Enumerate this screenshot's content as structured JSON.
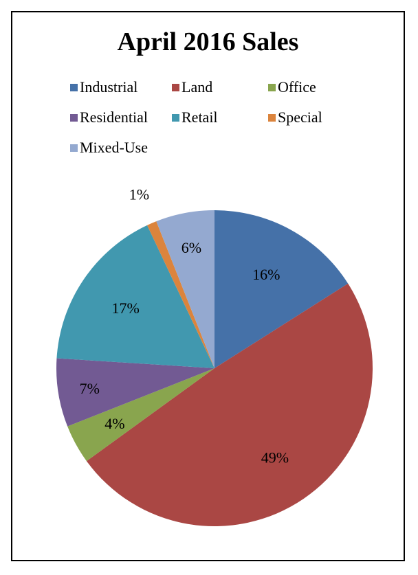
{
  "chart_data": {
    "type": "pie",
    "title": "April 2016 Sales",
    "categories": [
      "Industrial",
      "Land",
      "Office",
      "Residential",
      "Retail",
      "Special",
      "Mixed-Use"
    ],
    "values": [
      16,
      49,
      4,
      7,
      17,
      1,
      6
    ],
    "labels": [
      "16%",
      "49%",
      "4%",
      "7%",
      "17%",
      "1%",
      "6%"
    ],
    "colors": [
      "#4571A8",
      "#AA4744",
      "#89A54E",
      "#725A93",
      "#4198AF",
      "#DB843D",
      "#94A9D0"
    ],
    "legend_position": "top",
    "start_angle_deg": 0,
    "direction": "clockwise"
  }
}
